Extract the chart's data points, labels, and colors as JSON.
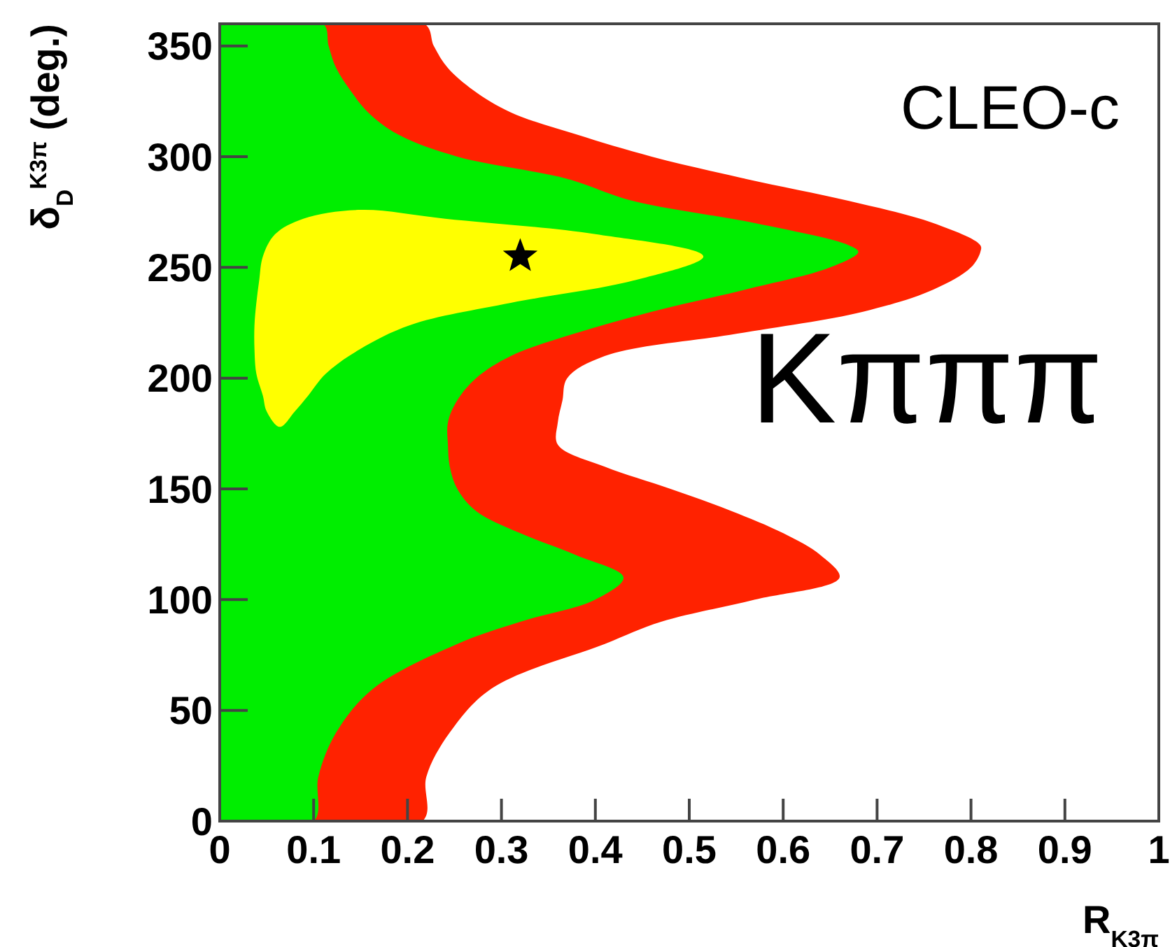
{
  "chart_data": {
    "type": "area",
    "orientation": "horizontal",
    "xlabel": "R$_{K3π}$",
    "ylabel": "δ$_{D}$$^{K3π}$ (deg.)",
    "annotations": [
      "CLEO-c",
      "Kπππ"
    ],
    "xlim": [
      0,
      1
    ],
    "xticks": [
      0,
      0.1,
      0.2,
      0.3,
      0.4,
      0.5,
      0.6,
      0.7,
      0.8,
      0.9,
      1
    ],
    "ylim": [
      0,
      360
    ],
    "yticks": [
      0,
      50,
      100,
      150,
      200,
      250,
      300,
      350
    ],
    "grid": false,
    "series": [
      {
        "color": "#ff2200",
        "x": [
          0,
          20,
          40,
          60,
          80,
          90,
          100,
          110,
          120,
          130,
          140,
          150,
          160,
          170,
          180,
          190,
          200,
          210,
          220,
          230,
          240,
          250,
          257,
          260,
          270,
          280,
          290,
          300,
          310,
          320,
          330,
          340,
          350,
          360
        ],
        "values": [
          0.216,
          0.22,
          0.245,
          0.29,
          0.41,
          0.47,
          0.57,
          0.66,
          0.64,
          0.6,
          0.545,
          0.48,
          0.41,
          0.36,
          0.36,
          0.365,
          0.37,
          0.41,
          0.55,
          0.685,
          0.76,
          0.8,
          0.81,
          0.81,
          0.76,
          0.67,
          0.56,
          0.46,
          0.38,
          0.31,
          0.27,
          0.243,
          0.228,
          0.218
        ]
      },
      {
        "color": "#00ee00",
        "x": [
          0,
          20,
          40,
          60,
          80,
          90,
          100,
          110,
          120,
          130,
          140,
          150,
          160,
          170,
          180,
          190,
          200,
          210,
          220,
          230,
          240,
          250,
          257,
          260,
          270,
          280,
          290,
          300,
          310,
          320,
          330,
          340,
          350,
          360
        ],
        "values": [
          0.1,
          0.105,
          0.124,
          0.164,
          0.253,
          0.32,
          0.4,
          0.43,
          0.38,
          0.32,
          0.273,
          0.253,
          0.245,
          0.243,
          0.243,
          0.253,
          0.273,
          0.31,
          0.377,
          0.46,
          0.56,
          0.65,
          0.68,
          0.67,
          0.57,
          0.44,
          0.37,
          0.253,
          0.19,
          0.158,
          0.139,
          0.124,
          0.116,
          0.11
        ]
      },
      {
        "color": "#ffff00",
        "x": [
          178,
          185,
          192,
          202,
          213,
          224,
          234,
          244,
          255,
          265,
          272,
          276,
          272,
          265,
          255,
          244,
          234,
          224,
          213,
          202,
          192,
          185
        ],
        "values": [
          0.064,
          0.08,
          0.094,
          0.113,
          0.149,
          0.203,
          0.31,
          0.44,
          0.515,
          0.4,
          0.24,
          0.15,
          0.089,
          0.059,
          0.046,
          0.042,
          0.039,
          0.037,
          0.037,
          0.039,
          0.046,
          0.05
        ]
      },
      {
        "type": "scatter",
        "marker": "star",
        "color": "#000000",
        "x": [
          255
        ],
        "values": [
          0.32
        ]
      }
    ]
  }
}
